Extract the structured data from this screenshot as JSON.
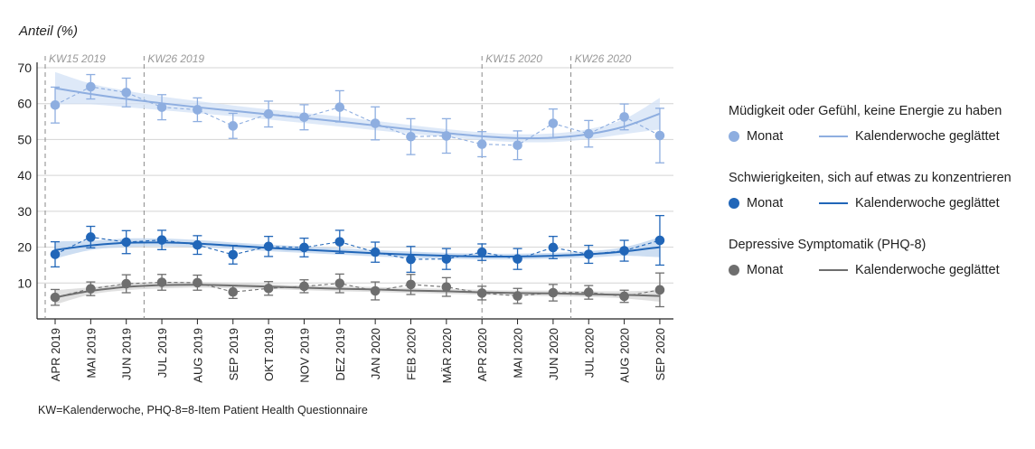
{
  "ylabel": "Anteil (%)",
  "footnote": "KW=Kalenderwoche, PHQ-8=8-Item Patient Health Questionnaire",
  "legend": [
    {
      "title": "Müdigkeit oder Gefühl, keine Energie zu haben",
      "monat": "Monat",
      "smooth": "Kalenderwoche geglättet",
      "color": "#8eaee0",
      "line_color": "#8eaee0"
    },
    {
      "title": "Schwierigkeiten, sich auf etwas zu konzentrieren",
      "monat": "Monat",
      "smooth": "Kalenderwoche geglättet",
      "color": "#2166b8",
      "line_color": "#2166b8"
    },
    {
      "title": "Depressive Symptomatik (PHQ-8)",
      "monat": "Monat",
      "smooth": "Kalenderwoche geglättet",
      "color": "#6e6e6e",
      "line_color": "#6e6e6e"
    }
  ],
  "chart_data": {
    "type": "line",
    "categories": [
      "APR 2019",
      "MAI 2019",
      "JUN 2019",
      "JUL 2019",
      "AUG 2019",
      "SEP 2019",
      "OKT 2019",
      "NOV 2019",
      "DEZ 2019",
      "JAN 2020",
      "FEB 2020",
      "MÄR 2020",
      "APR 2020",
      "MAI 2020",
      "JUN 2020",
      "JUL 2020",
      "AUG 2020",
      "SEP 2020"
    ],
    "ylim": [
      0,
      70
    ],
    "yticks": [
      10,
      20,
      30,
      40,
      50,
      60,
      70
    ],
    "reference_lines": [
      {
        "label": "KW15 2019",
        "at_month": 0
      },
      {
        "label": "KW26 2019",
        "at_month": 2.5
      },
      {
        "label": "KW15 2020",
        "at_month": 12
      },
      {
        "label": "KW26 2020",
        "at_month": 14.5
      }
    ],
    "series": [
      {
        "name": "Müdigkeit oder Gefühl, keine Energie zu haben",
        "color": "#8eaee0",
        "band_color": "#d3e1f5",
        "values": [
          59.6,
          64.7,
          63.1,
          59.0,
          58.3,
          53.8,
          57.1,
          56.2,
          59.0,
          54.5,
          50.8,
          51.0,
          48.7,
          48.4,
          54.5,
          51.6,
          56.3,
          51.1
        ],
        "ci_low": [
          54.6,
          61.3,
          59.1,
          55.5,
          55.0,
          50.3,
          53.5,
          52.7,
          54.9,
          49.9,
          45.8,
          46.2,
          45.2,
          44.4,
          50.5,
          47.9,
          52.7,
          43.5
        ],
        "ci_high": [
          64.6,
          68.1,
          67.1,
          62.5,
          61.6,
          57.3,
          60.7,
          59.7,
          63.6,
          59.1,
          55.8,
          55.8,
          52.2,
          52.4,
          58.5,
          55.3,
          59.9,
          58.7
        ],
        "smooth": [
          64.3,
          62.7,
          61.3,
          60.1,
          59.0,
          58.0,
          57.0,
          56.0,
          55.0,
          53.9,
          52.8,
          51.8,
          50.9,
          50.4,
          50.5,
          51.5,
          53.6,
          57.2
        ],
        "smooth_low": [
          59.8,
          59.8,
          59.0,
          58.2,
          57.3,
          56.5,
          55.6,
          54.6,
          53.6,
          52.6,
          51.6,
          50.7,
          49.8,
          49.3,
          49.3,
          50.1,
          51.5,
          52.8
        ],
        "smooth_high": [
          68.8,
          65.6,
          63.6,
          62.0,
          60.7,
          59.5,
          58.4,
          57.4,
          56.4,
          55.2,
          54.0,
          52.9,
          52.0,
          51.5,
          51.7,
          52.9,
          55.7,
          61.6
        ]
      },
      {
        "name": "Schwierigkeiten, sich auf etwas zu konzentrieren",
        "color": "#2166b8",
        "band_color": "#bcd3ee",
        "values": [
          18.0,
          22.8,
          21.4,
          22.0,
          20.6,
          17.9,
          20.2,
          19.9,
          21.5,
          18.6,
          16.6,
          16.7,
          18.6,
          16.7,
          19.9,
          18.0,
          19.0,
          21.9
        ],
        "ci_low": [
          14.5,
          19.8,
          18.2,
          19.3,
          18.0,
          15.3,
          17.4,
          17.3,
          18.3,
          15.8,
          13.0,
          13.8,
          16.3,
          13.8,
          16.8,
          15.5,
          16.1,
          15.0
        ],
        "ci_high": [
          21.5,
          25.8,
          24.6,
          24.7,
          23.2,
          20.5,
          23.0,
          22.5,
          24.7,
          21.4,
          20.2,
          19.6,
          20.9,
          19.6,
          23.0,
          20.5,
          21.9,
          28.8
        ],
        "smooth": [
          19.2,
          20.5,
          21.2,
          21.3,
          21.0,
          20.4,
          19.8,
          19.3,
          18.8,
          18.3,
          17.9,
          17.6,
          17.4,
          17.4,
          17.6,
          18.0,
          18.8,
          20.0
        ],
        "smooth_low": [
          16.8,
          19.2,
          20.0,
          20.2,
          20.0,
          19.5,
          18.9,
          18.4,
          17.9,
          17.4,
          17.0,
          16.8,
          16.6,
          16.6,
          16.8,
          17.1,
          17.6,
          17.2
        ],
        "smooth_high": [
          21.6,
          21.8,
          22.4,
          22.4,
          22.0,
          21.3,
          20.7,
          20.2,
          19.7,
          19.2,
          18.8,
          18.4,
          18.2,
          18.2,
          18.4,
          18.9,
          20.0,
          22.8
        ]
      },
      {
        "name": "Depressive Symptomatik (PHQ-8)",
        "color": "#6e6e6e",
        "band_color": "#d6d6d6",
        "values": [
          6.0,
          8.4,
          9.8,
          10.2,
          10.1,
          7.5,
          8.5,
          9.1,
          9.9,
          7.8,
          9.6,
          8.9,
          7.2,
          6.4,
          7.3,
          7.4,
          6.3,
          8.1
        ],
        "ci_low": [
          3.8,
          6.5,
          7.3,
          8.0,
          8.0,
          5.7,
          6.6,
          7.3,
          7.3,
          5.3,
          6.8,
          6.3,
          5.3,
          4.3,
          5.0,
          5.5,
          4.6,
          3.4
        ],
        "ci_high": [
          8.2,
          10.3,
          12.3,
          12.4,
          12.2,
          9.3,
          10.4,
          10.9,
          12.5,
          10.3,
          12.4,
          11.5,
          9.1,
          8.5,
          9.6,
          9.3,
          8.0,
          12.8
        ],
        "smooth": [
          6.0,
          7.8,
          8.9,
          9.4,
          9.5,
          9.3,
          9.0,
          8.7,
          8.4,
          8.2,
          7.9,
          7.7,
          7.4,
          7.2,
          7.1,
          6.9,
          6.7,
          6.4
        ],
        "smooth_low": [
          4.0,
          6.8,
          8.0,
          8.5,
          8.7,
          8.5,
          8.3,
          8.0,
          7.7,
          7.5,
          7.2,
          7.0,
          6.7,
          6.5,
          6.3,
          6.1,
          5.7,
          4.8
        ],
        "smooth_high": [
          8.0,
          8.8,
          9.8,
          10.3,
          10.3,
          10.1,
          9.7,
          9.4,
          9.1,
          8.9,
          8.6,
          8.4,
          8.1,
          7.9,
          7.9,
          7.7,
          7.7,
          8.0
        ]
      }
    ]
  }
}
